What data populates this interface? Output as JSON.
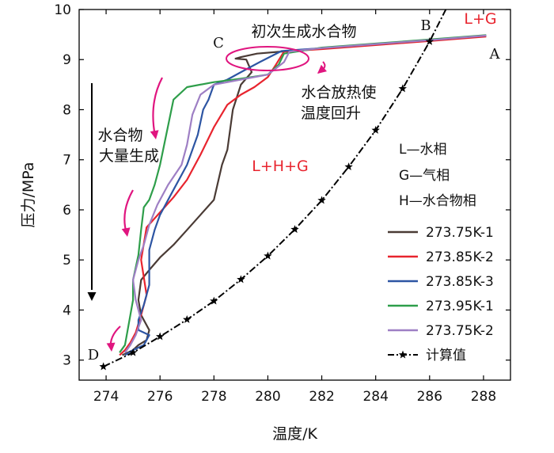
{
  "chart_data": {
    "type": "line",
    "xlabel": "温度/K",
    "ylabel": "压力/MPa",
    "xlim": [
      273,
      289
    ],
    "ylim": [
      2.6,
      10
    ],
    "xticks": [
      274,
      276,
      278,
      280,
      282,
      284,
      286,
      288
    ],
    "yticks": [
      3,
      4,
      5,
      6,
      7,
      8,
      9,
      10
    ],
    "grid": false,
    "legend_position": "right",
    "series": [
      {
        "name": "273.75K-1",
        "color": "#4a3b35",
        "marker": "none",
        "x": [
          288.1,
          286.0,
          284.0,
          282.0,
          280.5,
          279.6,
          279.0,
          278.8,
          279.2,
          279.4,
          279.0,
          278.7,
          278.5,
          278.3,
          278.0,
          277.5,
          277.0,
          276.5,
          276.0,
          275.6,
          275.3,
          275.2,
          275.3,
          275.6,
          275.5,
          275.2,
          275.0,
          274.8,
          274.6
        ],
        "y": [
          9.47,
          9.38,
          9.3,
          9.22,
          9.16,
          9.12,
          9.05,
          9.02,
          9.0,
          8.75,
          8.5,
          8.0,
          7.2,
          6.9,
          6.2,
          5.9,
          5.6,
          5.3,
          5.05,
          4.8,
          4.6,
          4.2,
          3.9,
          3.6,
          3.4,
          3.3,
          3.2,
          3.15,
          3.1
        ]
      },
      {
        "name": "273.85K-2",
        "color": "#e8242e",
        "marker": "none",
        "x": [
          288.1,
          286.0,
          284.0,
          282.0,
          280.6,
          280.3,
          280.0,
          279.5,
          279.0,
          278.5,
          278.0,
          277.5,
          277.0,
          276.5,
          276.0,
          275.5,
          275.3,
          275.5,
          275.3,
          275.1,
          274.9,
          274.7,
          274.5
        ],
        "y": [
          9.46,
          9.37,
          9.29,
          9.21,
          9.16,
          8.9,
          8.65,
          8.45,
          8.3,
          8.1,
          7.65,
          7.1,
          6.6,
          6.25,
          5.95,
          5.65,
          5.0,
          4.3,
          3.9,
          3.55,
          3.35,
          3.2,
          3.1
        ]
      },
      {
        "name": "273.85K-3",
        "color": "#2d55a3",
        "marker": "none",
        "x": [
          288.1,
          286.0,
          284.0,
          282.0,
          280.5,
          279.7,
          279.0,
          278.5,
          278.0,
          277.8,
          277.6,
          277.4,
          277.0,
          276.5,
          276.0,
          275.8,
          275.6,
          275.6,
          275.4,
          275.2,
          275.2,
          275.6,
          275.4,
          275.0,
          274.7
        ],
        "y": [
          9.48,
          9.39,
          9.31,
          9.23,
          9.17,
          8.95,
          8.75,
          8.6,
          8.5,
          8.2,
          8.0,
          7.5,
          6.9,
          6.4,
          5.9,
          5.6,
          5.2,
          4.5,
          4.1,
          3.8,
          3.6,
          3.5,
          3.3,
          3.2,
          3.1
        ]
      },
      {
        "name": "273.95K-1",
        "color": "#2e9e4a",
        "marker": "none",
        "x": [
          288.1,
          286.0,
          284.0,
          282.0,
          280.6,
          280.4,
          280.0,
          279.0,
          278.0,
          277.0,
          276.5,
          276.0,
          275.8,
          275.6,
          275.4,
          275.3,
          275.2,
          275.0,
          275.0,
          274.9,
          274.8,
          274.7,
          274.5
        ],
        "y": [
          9.49,
          9.4,
          9.32,
          9.24,
          9.12,
          8.9,
          8.7,
          8.62,
          8.55,
          8.45,
          8.2,
          6.9,
          6.5,
          6.2,
          6.05,
          5.6,
          5.1,
          4.6,
          4.2,
          3.9,
          3.6,
          3.3,
          3.15
        ]
      },
      {
        "name": "273.75K-2",
        "color": "#9e7fc4",
        "marker": "none",
        "x": [
          288.1,
          286.0,
          284.0,
          282.0,
          280.8,
          280.6,
          280.0,
          279.0,
          278.0,
          277.5,
          277.2,
          277.0,
          276.8,
          276.3,
          275.9,
          275.6,
          275.4,
          275.2,
          275.0,
          275.1,
          275.3,
          275.1,
          274.9,
          274.7
        ],
        "y": [
          9.48,
          9.39,
          9.31,
          9.23,
          9.16,
          8.95,
          8.7,
          8.6,
          8.5,
          8.3,
          7.9,
          7.3,
          6.9,
          6.5,
          6.1,
          5.7,
          5.3,
          5.0,
          4.6,
          4.2,
          3.8,
          3.5,
          3.3,
          3.15
        ]
      },
      {
        "name": "计算值",
        "color": "#000000",
        "marker": "star",
        "x": [
          273.9,
          275,
          276,
          277,
          278,
          279,
          280,
          281,
          282,
          283,
          284,
          285,
          286,
          286.6
        ],
        "y": [
          2.87,
          3.15,
          3.47,
          3.81,
          4.18,
          4.61,
          5.08,
          5.61,
          6.19,
          6.86,
          7.59,
          8.42,
          9.36,
          10.0
        ]
      }
    ],
    "annotations": {
      "point_A": "A",
      "point_B": "B",
      "point_C": "C",
      "point_D": "D",
      "region_LG": "L+G",
      "region_LHG": "L+H+G",
      "ann_initial": "初次生成水合物",
      "ann_heat_line1": "水合放热使",
      "ann_heat_line2": "温度回升",
      "ann_mass_line1": "水合物",
      "ann_mass_line2": "大量生成",
      "phase_L": "L—水相",
      "phase_G": "G—气相",
      "phase_H": "H—水合物相"
    },
    "colors": {
      "highlight": "#e0157f",
      "red_text": "#e8242e"
    }
  }
}
